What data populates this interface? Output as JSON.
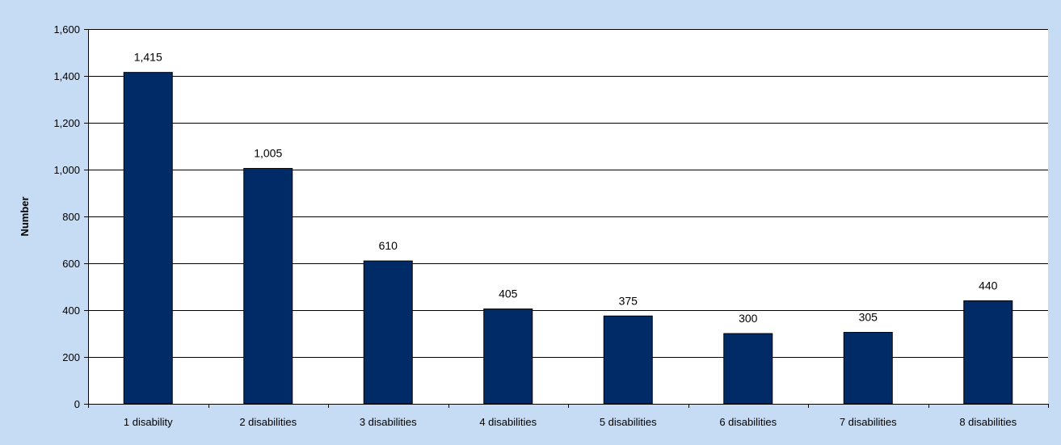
{
  "chart_data": {
    "type": "bar",
    "title": "",
    "xlabel": "",
    "ylabel": "Number",
    "categories": [
      "1 disability",
      "2 disabilities",
      "3 disabilities",
      "4 disabilities",
      "5 disabilities",
      "6 disabilities",
      "7 disabilities",
      "8 disabilities"
    ],
    "values": [
      1415,
      1005,
      610,
      405,
      375,
      300,
      305,
      440
    ],
    "data_labels": [
      "1,415",
      "1,005",
      "610",
      "405",
      "375",
      "300",
      "305",
      "440"
    ],
    "yticks": [
      0,
      200,
      400,
      600,
      800,
      1000,
      1200,
      1400,
      1600
    ],
    "ytick_labels": [
      "0",
      "200",
      "400",
      "600",
      "800",
      "1,000",
      "1,200",
      "1,400",
      "1,600"
    ],
    "ylim": [
      0,
      1600
    ],
    "grid": true,
    "legend": "none",
    "colors": {
      "bar": "#002b66",
      "plot_background": "#ffffff",
      "chart_background": "#c6dcf5",
      "gridline": "#000000"
    }
  }
}
